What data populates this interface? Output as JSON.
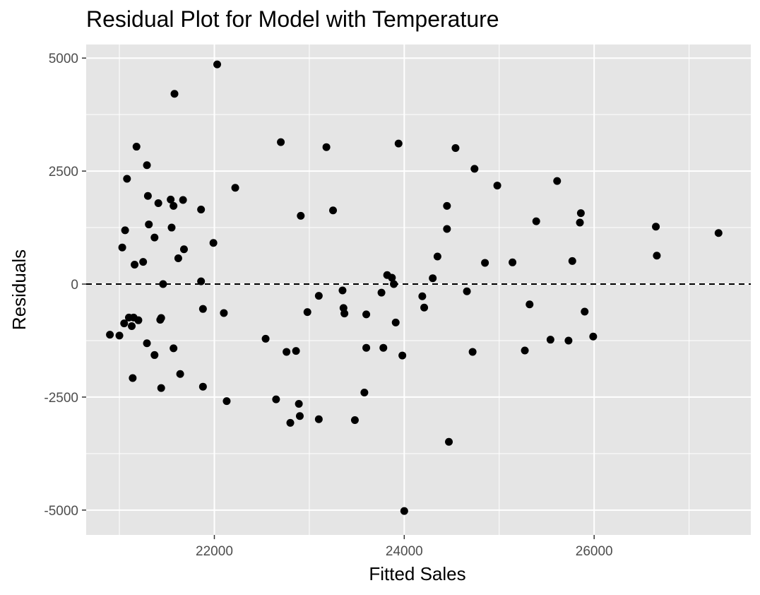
{
  "chart_data": {
    "type": "scatter",
    "title": "Residual Plot for Model with Temperature",
    "xlabel": "Fitted Sales",
    "ylabel": "Residuals",
    "xlim": [
      20650,
      27650
    ],
    "ylim": [
      -5550,
      5300
    ],
    "x_ticks": [
      22000,
      24000,
      26000
    ],
    "x_tick_labels": [
      "22000",
      "24000",
      "26000"
    ],
    "x_minor": [
      21000,
      23000,
      25000,
      27000
    ],
    "y_ticks": [
      -5000,
      -2500,
      0,
      2500,
      5000
    ],
    "y_tick_labels": [
      "-5000",
      "-2500",
      "0",
      "2500",
      "5000"
    ],
    "y_minor": [
      -3750,
      -1250,
      1250,
      3750
    ],
    "hline": 0,
    "grid": true,
    "colors": {
      "panel": "#e5e5e5",
      "grid": "#ffffff",
      "point": "#000000",
      "refline": "#000000",
      "tick": "#333333"
    },
    "points": [
      {
        "x": 20900,
        "y": -1120
      },
      {
        "x": 21000,
        "y": -1140
      },
      {
        "x": 21030,
        "y": 810
      },
      {
        "x": 21050,
        "y": -870
      },
      {
        "x": 21060,
        "y": 1190
      },
      {
        "x": 21080,
        "y": 2330
      },
      {
        "x": 21100,
        "y": -740
      },
      {
        "x": 21130,
        "y": -930
      },
      {
        "x": 21140,
        "y": -2080
      },
      {
        "x": 21150,
        "y": -740
      },
      {
        "x": 21160,
        "y": 430
      },
      {
        "x": 21180,
        "y": 3040
      },
      {
        "x": 21200,
        "y": -800
      },
      {
        "x": 21250,
        "y": 490
      },
      {
        "x": 21290,
        "y": 2630
      },
      {
        "x": 21290,
        "y": -1310
      },
      {
        "x": 21300,
        "y": 1950
      },
      {
        "x": 21310,
        "y": 1320
      },
      {
        "x": 21370,
        "y": 1030
      },
      {
        "x": 21370,
        "y": -1570
      },
      {
        "x": 21410,
        "y": 1790
      },
      {
        "x": 21430,
        "y": -790
      },
      {
        "x": 21440,
        "y": -750
      },
      {
        "x": 21440,
        "y": -2300
      },
      {
        "x": 21460,
        "y": 0
      },
      {
        "x": 21540,
        "y": 1870
      },
      {
        "x": 21550,
        "y": 1250
      },
      {
        "x": 21570,
        "y": 1730
      },
      {
        "x": 21570,
        "y": -1420
      },
      {
        "x": 21580,
        "y": 4210
      },
      {
        "x": 21620,
        "y": 570
      },
      {
        "x": 21640,
        "y": -1990
      },
      {
        "x": 21670,
        "y": 1860
      },
      {
        "x": 21680,
        "y": 770
      },
      {
        "x": 21860,
        "y": 1650
      },
      {
        "x": 21860,
        "y": 60
      },
      {
        "x": 21880,
        "y": -550
      },
      {
        "x": 21880,
        "y": -2270
      },
      {
        "x": 21990,
        "y": 910
      },
      {
        "x": 22030,
        "y": 4860
      },
      {
        "x": 22100,
        "y": -640
      },
      {
        "x": 22130,
        "y": -2590
      },
      {
        "x": 22220,
        "y": 2130
      },
      {
        "x": 22540,
        "y": -1210
      },
      {
        "x": 22650,
        "y": -2550
      },
      {
        "x": 22700,
        "y": 3140
      },
      {
        "x": 22760,
        "y": -1500
      },
      {
        "x": 22800,
        "y": -3070
      },
      {
        "x": 22860,
        "y": -1480
      },
      {
        "x": 22890,
        "y": -2650
      },
      {
        "x": 22900,
        "y": -2920
      },
      {
        "x": 22910,
        "y": 1510
      },
      {
        "x": 22980,
        "y": -620
      },
      {
        "x": 23100,
        "y": -2990
      },
      {
        "x": 23100,
        "y": -260
      },
      {
        "x": 23180,
        "y": 3030
      },
      {
        "x": 23250,
        "y": 1630
      },
      {
        "x": 23350,
        "y": -140
      },
      {
        "x": 23360,
        "y": -530
      },
      {
        "x": 23370,
        "y": -650
      },
      {
        "x": 23480,
        "y": -3010
      },
      {
        "x": 23580,
        "y": -2400
      },
      {
        "x": 23600,
        "y": -670
      },
      {
        "x": 23600,
        "y": -1410
      },
      {
        "x": 23760,
        "y": -190
      },
      {
        "x": 23780,
        "y": -1410
      },
      {
        "x": 23820,
        "y": 200
      },
      {
        "x": 23870,
        "y": 140
      },
      {
        "x": 23890,
        "y": 0
      },
      {
        "x": 23910,
        "y": -850
      },
      {
        "x": 23940,
        "y": 3110
      },
      {
        "x": 23980,
        "y": -1580
      },
      {
        "x": 24000,
        "y": -5020
      },
      {
        "x": 24190,
        "y": -270
      },
      {
        "x": 24210,
        "y": -520
      },
      {
        "x": 24300,
        "y": 130
      },
      {
        "x": 24350,
        "y": 610
      },
      {
        "x": 24450,
        "y": 1730
      },
      {
        "x": 24450,
        "y": 1220
      },
      {
        "x": 24470,
        "y": -3490
      },
      {
        "x": 24540,
        "y": 3010
      },
      {
        "x": 24660,
        "y": -160
      },
      {
        "x": 24720,
        "y": -1500
      },
      {
        "x": 24740,
        "y": 2550
      },
      {
        "x": 24850,
        "y": 470
      },
      {
        "x": 24980,
        "y": 2180
      },
      {
        "x": 25140,
        "y": 480
      },
      {
        "x": 25270,
        "y": -1470
      },
      {
        "x": 25320,
        "y": -450
      },
      {
        "x": 25390,
        "y": 1390
      },
      {
        "x": 25540,
        "y": -1230
      },
      {
        "x": 25610,
        "y": 2280
      },
      {
        "x": 25730,
        "y": -1250
      },
      {
        "x": 25770,
        "y": 510
      },
      {
        "x": 25850,
        "y": 1360
      },
      {
        "x": 25860,
        "y": 1570
      },
      {
        "x": 25900,
        "y": -610
      },
      {
        "x": 25990,
        "y": -1160
      },
      {
        "x": 26650,
        "y": 1270
      },
      {
        "x": 26660,
        "y": 630
      },
      {
        "x": 27310,
        "y": 1130
      }
    ]
  }
}
